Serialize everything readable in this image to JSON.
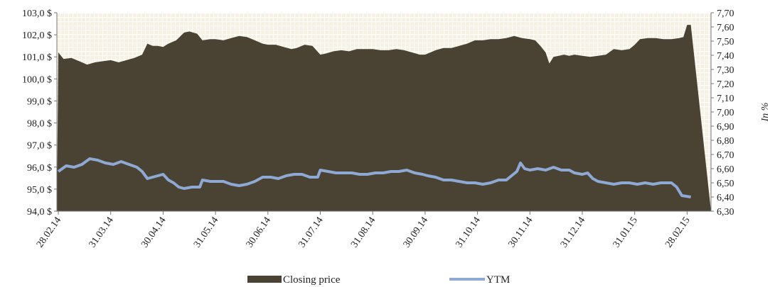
{
  "chart_data": {
    "type": "area",
    "x_labels": [
      "28.02.14",
      "31.03.14",
      "30.04.14",
      "31.05.14",
      "30.06.14",
      "31.07.14",
      "31.08.14",
      "30.09.14",
      "31.10.14",
      "30.11.14",
      "31.12.14",
      "31.01.15",
      "28.02.15"
    ],
    "left_axis": {
      "ticks": [
        "94,0 $",
        "95,0 $",
        "96,0 $",
        "97,0 $",
        "98,0 $",
        "99,0 $",
        "100,0 $",
        "101,0 $",
        "102,0 $",
        "103,0 $"
      ],
      "ylim": [
        94,
        103
      ]
    },
    "right_axis": {
      "label": "In %",
      "ticks": [
        "6,30",
        "6,40",
        "6,50",
        "6,60",
        "6,70",
        "6,80",
        "6,90",
        "7,00",
        "7,10",
        "7,20",
        "7,30",
        "7,40",
        "7,50",
        "7,60",
        "7,70"
      ],
      "ylim": [
        6.3,
        7.7
      ]
    },
    "series": [
      {
        "name": "Closing price",
        "kind": "area",
        "axis": "left",
        "color": "#4a4232",
        "points": [
          [
            0,
            101.2
          ],
          [
            0.1,
            100.9
          ],
          [
            0.25,
            100.95
          ],
          [
            0.4,
            100.8
          ],
          [
            0.55,
            100.65
          ],
          [
            0.7,
            100.75
          ],
          [
            0.85,
            100.8
          ],
          [
            1.0,
            100.85
          ],
          [
            1.15,
            100.75
          ],
          [
            1.3,
            100.85
          ],
          [
            1.45,
            100.95
          ],
          [
            1.6,
            101.1
          ],
          [
            1.7,
            101.6
          ],
          [
            1.8,
            101.5
          ],
          [
            1.9,
            101.5
          ],
          [
            2.0,
            101.45
          ],
          [
            2.1,
            101.6
          ],
          [
            2.25,
            101.75
          ],
          [
            2.4,
            102.1
          ],
          [
            2.5,
            102.15
          ],
          [
            2.65,
            102.05
          ],
          [
            2.75,
            101.75
          ],
          [
            2.9,
            101.8
          ],
          [
            3.0,
            101.8
          ],
          [
            3.15,
            101.75
          ],
          [
            3.3,
            101.85
          ],
          [
            3.45,
            101.95
          ],
          [
            3.6,
            101.9
          ],
          [
            3.75,
            101.75
          ],
          [
            3.9,
            101.6
          ],
          [
            4.0,
            101.55
          ],
          [
            4.15,
            101.55
          ],
          [
            4.3,
            101.45
          ],
          [
            4.45,
            101.35
          ],
          [
            4.55,
            101.4
          ],
          [
            4.7,
            101.55
          ],
          [
            4.85,
            101.5
          ],
          [
            5.0,
            101.1
          ],
          [
            5.1,
            101.15
          ],
          [
            5.25,
            101.25
          ],
          [
            5.4,
            101.3
          ],
          [
            5.55,
            101.25
          ],
          [
            5.7,
            101.35
          ],
          [
            5.85,
            101.35
          ],
          [
            6.0,
            101.35
          ],
          [
            6.15,
            101.3
          ],
          [
            6.3,
            101.3
          ],
          [
            6.45,
            101.35
          ],
          [
            6.6,
            101.3
          ],
          [
            6.75,
            101.2
          ],
          [
            6.9,
            101.1
          ],
          [
            7.0,
            101.1
          ],
          [
            7.1,
            101.2
          ],
          [
            7.2,
            101.3
          ],
          [
            7.35,
            101.4
          ],
          [
            7.5,
            101.4
          ],
          [
            7.65,
            101.5
          ],
          [
            7.8,
            101.6
          ],
          [
            7.95,
            101.75
          ],
          [
            8.1,
            101.75
          ],
          [
            8.25,
            101.8
          ],
          [
            8.4,
            101.8
          ],
          [
            8.55,
            101.85
          ],
          [
            8.7,
            101.95
          ],
          [
            8.85,
            101.85
          ],
          [
            9.0,
            101.8
          ],
          [
            9.1,
            101.75
          ],
          [
            9.2,
            101.5
          ],
          [
            9.3,
            101.2
          ],
          [
            9.37,
            100.7
          ],
          [
            9.45,
            101.0
          ],
          [
            9.55,
            101.05
          ],
          [
            9.65,
            101.1
          ],
          [
            9.75,
            101.05
          ],
          [
            9.85,
            101.1
          ],
          [
            10.0,
            101.05
          ],
          [
            10.15,
            101.0
          ],
          [
            10.3,
            101.05
          ],
          [
            10.45,
            101.1
          ],
          [
            10.6,
            101.35
          ],
          [
            10.75,
            101.3
          ],
          [
            10.9,
            101.35
          ],
          [
            11.0,
            101.55
          ],
          [
            11.1,
            101.8
          ],
          [
            11.25,
            101.85
          ],
          [
            11.4,
            101.85
          ],
          [
            11.55,
            101.8
          ],
          [
            11.7,
            101.8
          ],
          [
            11.85,
            101.85
          ],
          [
            11.93,
            101.9
          ],
          [
            12.0,
            102.45
          ],
          [
            12.07,
            102.45
          ]
        ]
      },
      {
        "name": "YTM",
        "kind": "line",
        "axis": "right",
        "color": "#8ea9d3",
        "points": [
          [
            0,
            6.58
          ],
          [
            0.15,
            6.62
          ],
          [
            0.3,
            6.61
          ],
          [
            0.45,
            6.63
          ],
          [
            0.6,
            6.67
          ],
          [
            0.75,
            6.66
          ],
          [
            0.9,
            6.64
          ],
          [
            1.05,
            6.63
          ],
          [
            1.2,
            6.65
          ],
          [
            1.35,
            6.63
          ],
          [
            1.5,
            6.61
          ],
          [
            1.6,
            6.58
          ],
          [
            1.7,
            6.53
          ],
          [
            1.8,
            6.54
          ],
          [
            1.9,
            6.55
          ],
          [
            2.0,
            6.56
          ],
          [
            2.1,
            6.52
          ],
          [
            2.2,
            6.5
          ],
          [
            2.3,
            6.47
          ],
          [
            2.4,
            6.46
          ],
          [
            2.55,
            6.47
          ],
          [
            2.7,
            6.47
          ],
          [
            2.75,
            6.52
          ],
          [
            2.9,
            6.51
          ],
          [
            3.0,
            6.51
          ],
          [
            3.15,
            6.51
          ],
          [
            3.3,
            6.49
          ],
          [
            3.45,
            6.48
          ],
          [
            3.6,
            6.49
          ],
          [
            3.75,
            6.51
          ],
          [
            3.9,
            6.54
          ],
          [
            4.05,
            6.54
          ],
          [
            4.2,
            6.53
          ],
          [
            4.35,
            6.55
          ],
          [
            4.5,
            6.56
          ],
          [
            4.65,
            6.56
          ],
          [
            4.8,
            6.54
          ],
          [
            4.95,
            6.54
          ],
          [
            5.0,
            6.59
          ],
          [
            5.15,
            6.58
          ],
          [
            5.3,
            6.57
          ],
          [
            5.45,
            6.57
          ],
          [
            5.6,
            6.57
          ],
          [
            5.75,
            6.56
          ],
          [
            5.9,
            6.56
          ],
          [
            6.05,
            6.57
          ],
          [
            6.2,
            6.57
          ],
          [
            6.35,
            6.58
          ],
          [
            6.5,
            6.58
          ],
          [
            6.65,
            6.59
          ],
          [
            6.8,
            6.57
          ],
          [
            6.95,
            6.56
          ],
          [
            7.05,
            6.55
          ],
          [
            7.2,
            6.54
          ],
          [
            7.35,
            6.52
          ],
          [
            7.5,
            6.52
          ],
          [
            7.65,
            6.51
          ],
          [
            7.8,
            6.5
          ],
          [
            7.95,
            6.5
          ],
          [
            8.1,
            6.49
          ],
          [
            8.25,
            6.5
          ],
          [
            8.4,
            6.52
          ],
          [
            8.55,
            6.52
          ],
          [
            8.65,
            6.55
          ],
          [
            8.75,
            6.58
          ],
          [
            8.82,
            6.64
          ],
          [
            8.9,
            6.6
          ],
          [
            9.0,
            6.59
          ],
          [
            9.15,
            6.6
          ],
          [
            9.3,
            6.59
          ],
          [
            9.45,
            6.61
          ],
          [
            9.6,
            6.59
          ],
          [
            9.75,
            6.59
          ],
          [
            9.85,
            6.57
          ],
          [
            10.0,
            6.56
          ],
          [
            10.1,
            6.57
          ],
          [
            10.2,
            6.53
          ],
          [
            10.3,
            6.51
          ],
          [
            10.45,
            6.5
          ],
          [
            10.6,
            6.49
          ],
          [
            10.75,
            6.5
          ],
          [
            10.9,
            6.5
          ],
          [
            11.05,
            6.49
          ],
          [
            11.2,
            6.5
          ],
          [
            11.35,
            6.49
          ],
          [
            11.5,
            6.5
          ],
          [
            11.7,
            6.5
          ],
          [
            11.8,
            6.47
          ],
          [
            11.9,
            6.41
          ],
          [
            12.07,
            6.4
          ]
        ]
      }
    ],
    "background": "light grid",
    "legend_position": "bottom"
  }
}
